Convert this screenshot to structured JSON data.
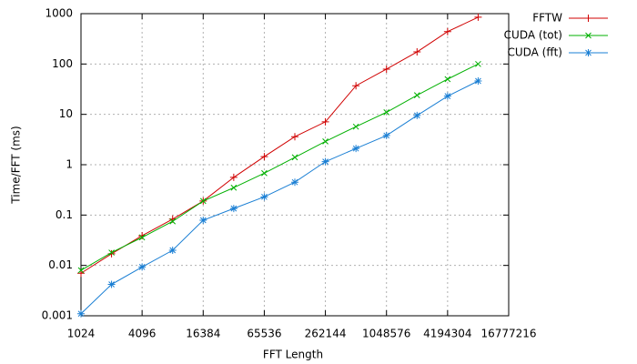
{
  "chart_data": {
    "type": "line",
    "x_label": "FFT Length",
    "y_label": "Time/FFT (ms)",
    "x": [
      1024,
      2048,
      4096,
      8192,
      16384,
      32768,
      65536,
      131072,
      262144,
      524288,
      1048576,
      2097152,
      4194304,
      8388608
    ],
    "series": [
      {
        "name": "FFTW",
        "color": "#d00000",
        "marker": "plus",
        "values": [
          0.007,
          0.017,
          0.039,
          0.083,
          0.19,
          0.56,
          1.45,
          3.6,
          7.1,
          37,
          79,
          174,
          440,
          850
        ]
      },
      {
        "name": "CUDA (tot)",
        "color": "#00b000",
        "marker": "cross",
        "values": [
          0.008,
          0.018,
          0.036,
          0.075,
          0.19,
          0.35,
          0.68,
          1.4,
          2.9,
          5.7,
          11,
          24,
          50,
          100
        ]
      },
      {
        "name": "CUDA (fft)",
        "color": "#1a7fd4",
        "marker": "star",
        "values": [
          0.0011,
          0.0042,
          0.0093,
          0.02,
          0.079,
          0.135,
          0.23,
          0.45,
          1.15,
          2.1,
          3.8,
          9.5,
          23,
          46
        ]
      }
    ],
    "xlog": true,
    "ylog": true,
    "xlim": [
      1024,
      16777216
    ],
    "ylim": [
      0.001,
      1000
    ],
    "xticks": [
      1024,
      4096,
      16384,
      65536,
      262144,
      1048576,
      4194304,
      16777216
    ],
    "yticks": [
      0.001,
      0.01,
      0.1,
      1,
      10,
      100,
      1000
    ],
    "grid": true,
    "legend": "top-right-outside"
  }
}
